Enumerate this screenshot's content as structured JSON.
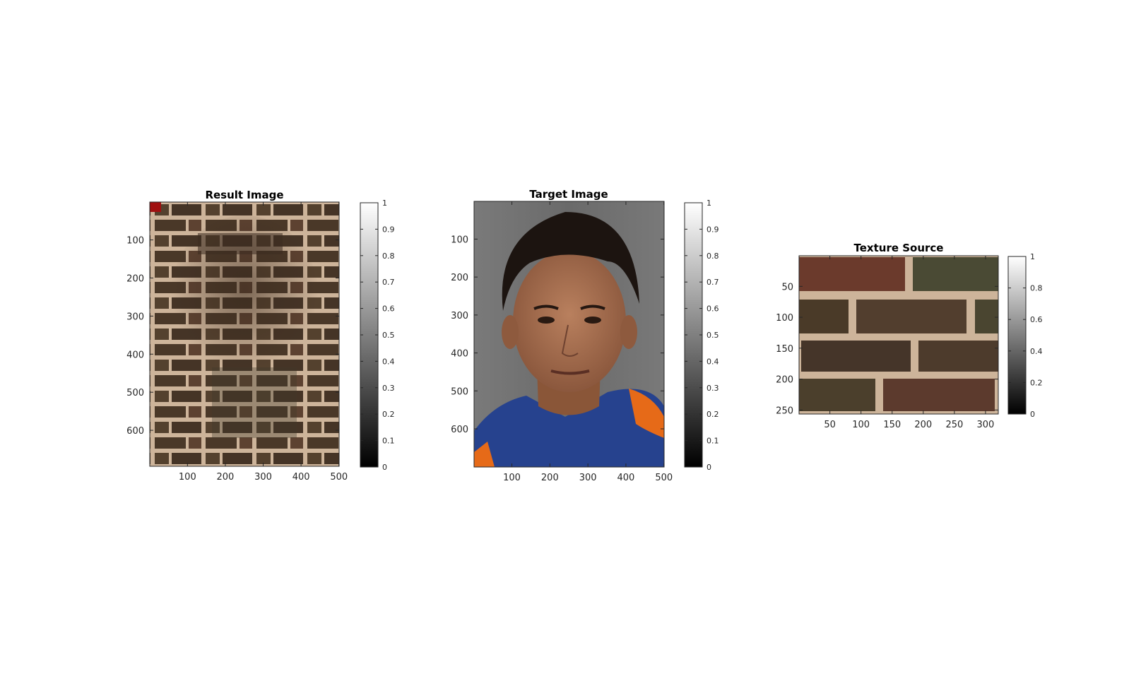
{
  "figure": {
    "background": "#ffffff",
    "axis_color": "#262626"
  },
  "chart_data": [
    {
      "type": "image",
      "title": "Result Image",
      "x_ticks": [
        100,
        200,
        300,
        400,
        500
      ],
      "y_ticks": [
        100,
        200,
        300,
        400,
        500,
        600
      ],
      "xlim": [
        0.5,
        500.5
      ],
      "ylim": [
        0.5,
        694.5
      ],
      "y_reversed": true,
      "colorbar": {
        "colormap": "gray",
        "range": [
          0,
          1
        ],
        "ticks": [
          "0",
          "0.1",
          "0.2",
          "0.3",
          "0.4",
          "0.5",
          "0.6",
          "0.7",
          "0.8",
          "0.9",
          "1"
        ]
      },
      "content": "brick-texture-face"
    },
    {
      "type": "image",
      "title": "Target Image",
      "x_ticks": [
        100,
        200,
        300,
        400,
        500
      ],
      "y_ticks": [
        100,
        200,
        300,
        400,
        500,
        600
      ],
      "xlim": [
        0.5,
        500.5
      ],
      "ylim": [
        0.5,
        700.5
      ],
      "y_reversed": true,
      "colorbar": {
        "colormap": "gray",
        "range": [
          0,
          1
        ],
        "ticks": [
          "0",
          "0.1",
          "0.2",
          "0.3",
          "0.4",
          "0.5",
          "0.6",
          "0.7",
          "0.8",
          "0.9",
          "1"
        ]
      },
      "content": "portrait-photo"
    },
    {
      "type": "image",
      "title": "Texture Source",
      "x_ticks": [
        50,
        100,
        150,
        200,
        250,
        300
      ],
      "y_ticks": [
        50,
        100,
        150,
        200,
        250
      ],
      "xlim": [
        0.5,
        320.5
      ],
      "ylim": [
        0.5,
        256.5
      ],
      "y_reversed": true,
      "colorbar": {
        "colormap": "gray",
        "range": [
          0,
          1
        ],
        "ticks": [
          "0",
          "0.2",
          "0.4",
          "0.6",
          "0.8",
          "1"
        ]
      },
      "content": "brick-wall-texture"
    }
  ],
  "colors": {
    "mortar": "#cdb49a",
    "brick_dark": "#3e3224",
    "brick_mid": "#5a4432",
    "brick_red": "#6b3a2c",
    "brick_green": "#4a4a34",
    "photo_bg": "#6f6f6f",
    "hair": "#1c1410",
    "skin": "#a46b4d",
    "shirt_blue": "#26428e",
    "shirt_orange": "#e66a18"
  }
}
